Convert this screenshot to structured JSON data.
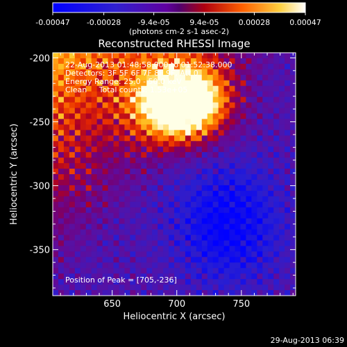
{
  "chart_data": {
    "type": "heatmap",
    "title": "Reconstructed RHESSI Image",
    "xlabel": "Heliocentric X (arcsec)",
    "ylabel": "Heliocentric Y (arcsec)",
    "xlim": [
      604,
      792
    ],
    "ylim": [
      -386,
      -196
    ],
    "x_ticks": [
      650,
      700,
      750
    ],
    "y_ticks": [
      -200,
      -250,
      -300,
      -350
    ],
    "colorbar": {
      "ticks": [
        "-0.00047",
        "-0.00028",
        "-9.4e-05",
        "9.4e-05",
        "0.00028",
        "0.00047"
      ],
      "range": [
        -0.00047,
        0.00047
      ],
      "unit_label": "(photons cm-2 s-1 asec-2)"
    },
    "annotations": {
      "time_range": "22-Aug-2013 01:48:58.000 to 01:52:38.000",
      "detectors": "Detectors: 3F 5F 6F 7F 8F 9F, Att 0",
      "energy_range": "Energy Range: 25.0 - 50.0 keV",
      "clean_counts": "Clean     Total counts: 1.53e+05",
      "peak_position": "Position of Peak = [705,-236]"
    },
    "peak": {
      "x": 705,
      "y": -236
    },
    "timestamp": "29-Aug-2013 06:39"
  }
}
